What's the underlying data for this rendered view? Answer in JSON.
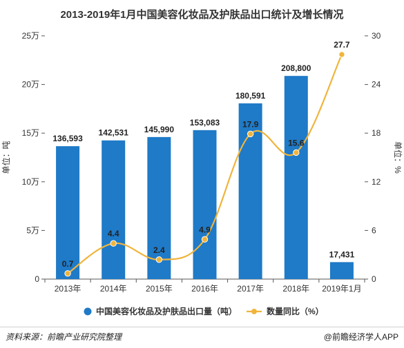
{
  "chart_data": {
    "type": "bar",
    "title": "2013-2019年1月中国美容化妆品及护肤品出口统计及增长情况",
    "categories": [
      "2013年",
      "2014年",
      "2015年",
      "2016年",
      "2017年",
      "2018年",
      "2019年1月"
    ],
    "series": [
      {
        "name": "中国美容化妆品及护肤品出口量（吨）",
        "type": "bar",
        "axis": "left",
        "values": [
          136593,
          142531,
          145990,
          153083,
          180591,
          208800,
          17431
        ],
        "labels": [
          "136,593",
          "142,531",
          "145,990",
          "153,083",
          "180,591",
          "208,800",
          "17,431"
        ],
        "color": "#1f7ac7"
      },
      {
        "name": "数量同比（%）",
        "type": "line",
        "axis": "right",
        "values": [
          0.7,
          4.4,
          2.4,
          4.9,
          17.9,
          15.6,
          27.7
        ],
        "labels": [
          "0.7",
          "4.4",
          "2.4",
          "4.9",
          "17.9",
          "15.6",
          "27.7"
        ],
        "color": "#f0b43c"
      }
    ],
    "y_left": {
      "label": "单位：吨",
      "ylim": [
        0,
        250000
      ],
      "ticks": [
        0,
        50000,
        100000,
        150000,
        200000,
        250000
      ],
      "tick_labels": [
        "0",
        "5万",
        "10万",
        "15万",
        "20万",
        "25万"
      ]
    },
    "y_right": {
      "label": "单位：%",
      "ylim": [
        0,
        30
      ],
      "ticks": [
        0,
        6,
        12,
        18,
        24,
        30
      ],
      "tick_labels": [
        "0",
        "6",
        "12",
        "18",
        "24",
        "30"
      ]
    },
    "grid": false,
    "legend_position": "bottom"
  },
  "footer": {
    "source": "资料来源：前瞻产业研究院整理",
    "brand": "@前瞻经济学人APP"
  }
}
